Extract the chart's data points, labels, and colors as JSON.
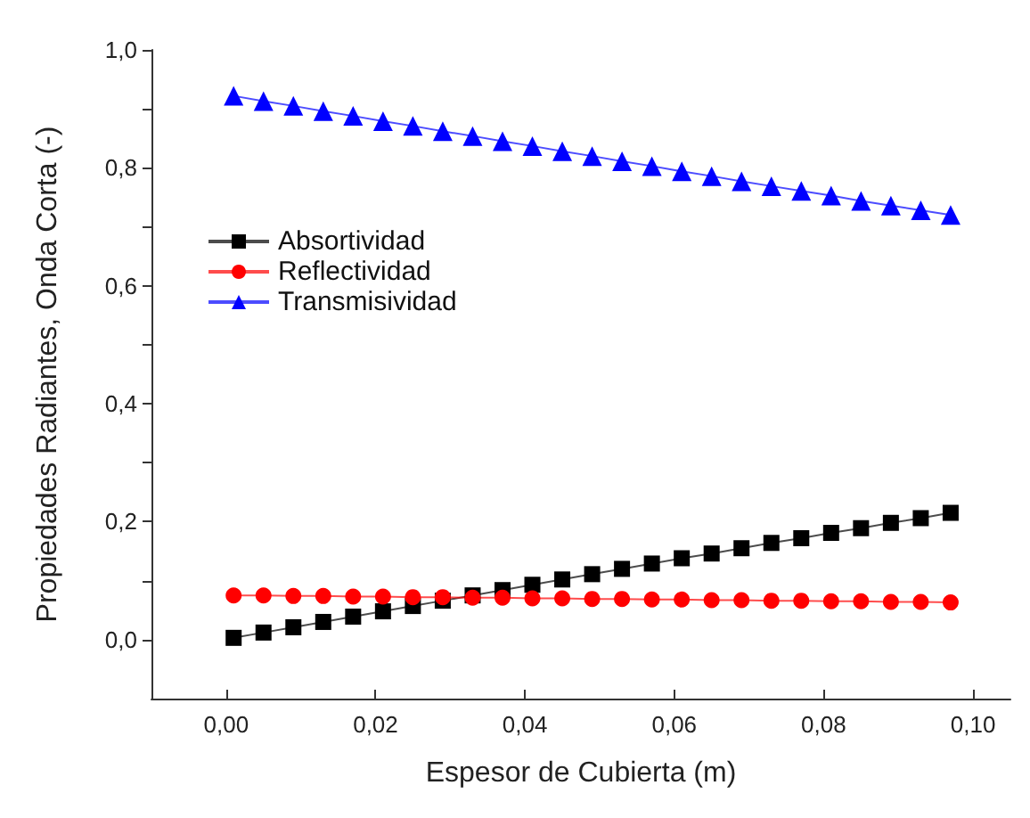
{
  "chart_data": {
    "type": "line",
    "xlabel": "Espesor de Cubierta (m)",
    "ylabel": "Propiedades Radiantes, Onda Corta (-)",
    "x": [
      0.001,
      0.005,
      0.009,
      0.013,
      0.017,
      0.021,
      0.025,
      0.029,
      0.033,
      0.037,
      0.041,
      0.045,
      0.049,
      0.053,
      0.057,
      0.061,
      0.065,
      0.069,
      0.073,
      0.077,
      0.081,
      0.085,
      0.089,
      0.093,
      0.097
    ],
    "series": [
      {
        "name": "Absortividad",
        "color": "#000000",
        "marker": "square",
        "values": [
          0.003,
          0.012,
          0.021,
          0.03,
          0.039,
          0.048,
          0.057,
          0.066,
          0.075,
          0.084,
          0.093,
          0.102,
          0.111,
          0.12,
          0.129,
          0.138,
          0.146,
          0.155,
          0.164,
          0.172,
          0.181,
          0.189,
          0.198,
          0.206,
          0.215
        ]
      },
      {
        "name": "Reflectividad",
        "color": "#ff0000",
        "marker": "circle",
        "values": [
          0.075,
          0.075,
          0.074,
          0.074,
          0.073,
          0.073,
          0.072,
          0.072,
          0.071,
          0.071,
          0.07,
          0.07,
          0.069,
          0.069,
          0.068,
          0.068,
          0.067,
          0.067,
          0.066,
          0.066,
          0.065,
          0.065,
          0.064,
          0.064,
          0.063
        ]
      },
      {
        "name": "Transmisividad",
        "color": "#0000ff",
        "marker": "triangle",
        "values": [
          0.922,
          0.913,
          0.905,
          0.896,
          0.888,
          0.879,
          0.871,
          0.862,
          0.854,
          0.845,
          0.837,
          0.828,
          0.82,
          0.811,
          0.803,
          0.794,
          0.786,
          0.777,
          0.769,
          0.761,
          0.753,
          0.744,
          0.736,
          0.728,
          0.72
        ]
      }
    ],
    "xlim": [
      -0.01,
      0.105
    ],
    "xticks": [
      {
        "value": 0,
        "label": "0,00"
      },
      {
        "value": 0.02,
        "label": "0,02"
      },
      {
        "value": 0.04,
        "label": "0,04"
      },
      {
        "value": 0.06,
        "label": "0,06"
      },
      {
        "value": 0.08,
        "label": "0,08"
      },
      {
        "value": 0.1,
        "label": "0,10"
      }
    ],
    "ylim": [
      -0.1,
      1.0
    ],
    "yticks": [
      {
        "value": 0,
        "label": "0,0"
      },
      {
        "value": 0.1,
        "label": null
      },
      {
        "value": 0.2,
        "label": "0,2"
      },
      {
        "value": 0.3,
        "label": null
      },
      {
        "value": 0.4,
        "label": "0,4"
      },
      {
        "value": 0.5,
        "label": null
      },
      {
        "value": 0.6,
        "label": "0,6"
      },
      {
        "value": 0.7,
        "label": null
      },
      {
        "value": 0.8,
        "label": "0,8"
      },
      {
        "value": 0.9,
        "label": null
      },
      {
        "value": 1.0,
        "label": "1,0"
      }
    ],
    "grid": false,
    "legend": "left"
  }
}
